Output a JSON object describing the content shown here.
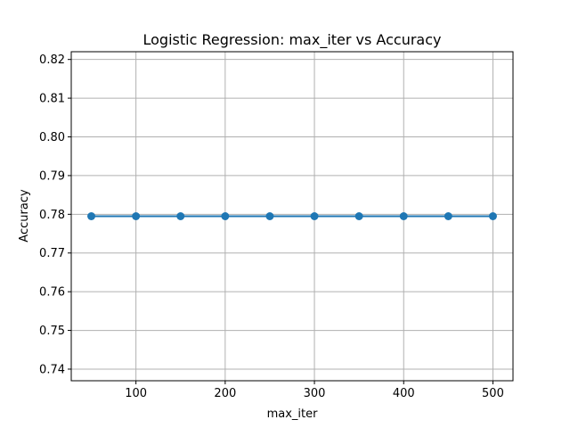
{
  "chart_data": {
    "type": "line",
    "title": "Logistic Regression: max_iter vs Accuracy",
    "xlabel": "max_iter",
    "ylabel": "Accuracy",
    "x": [
      50,
      100,
      150,
      200,
      250,
      300,
      350,
      400,
      450,
      500
    ],
    "series": [
      {
        "values": [
          0.7795,
          0.7795,
          0.7795,
          0.7795,
          0.7795,
          0.7795,
          0.7795,
          0.7795,
          0.7795,
          0.7795
        ],
        "color": "#1f77b4",
        "marker": "circle"
      }
    ],
    "xlim": [
      27.5,
      522.5
    ],
    "ylim": [
      0.737,
      0.822
    ],
    "xticks": [
      100,
      200,
      300,
      400,
      500
    ],
    "yticks": [
      0.74,
      0.75,
      0.76,
      0.77,
      0.78,
      0.79,
      0.8,
      0.81,
      0.82
    ],
    "ytick_labels": [
      "0.74",
      "0.75",
      "0.76",
      "0.77",
      "0.78",
      "0.79",
      "0.80",
      "0.81",
      "0.82"
    ],
    "grid": true,
    "grid_color": "#b0b0b0"
  }
}
